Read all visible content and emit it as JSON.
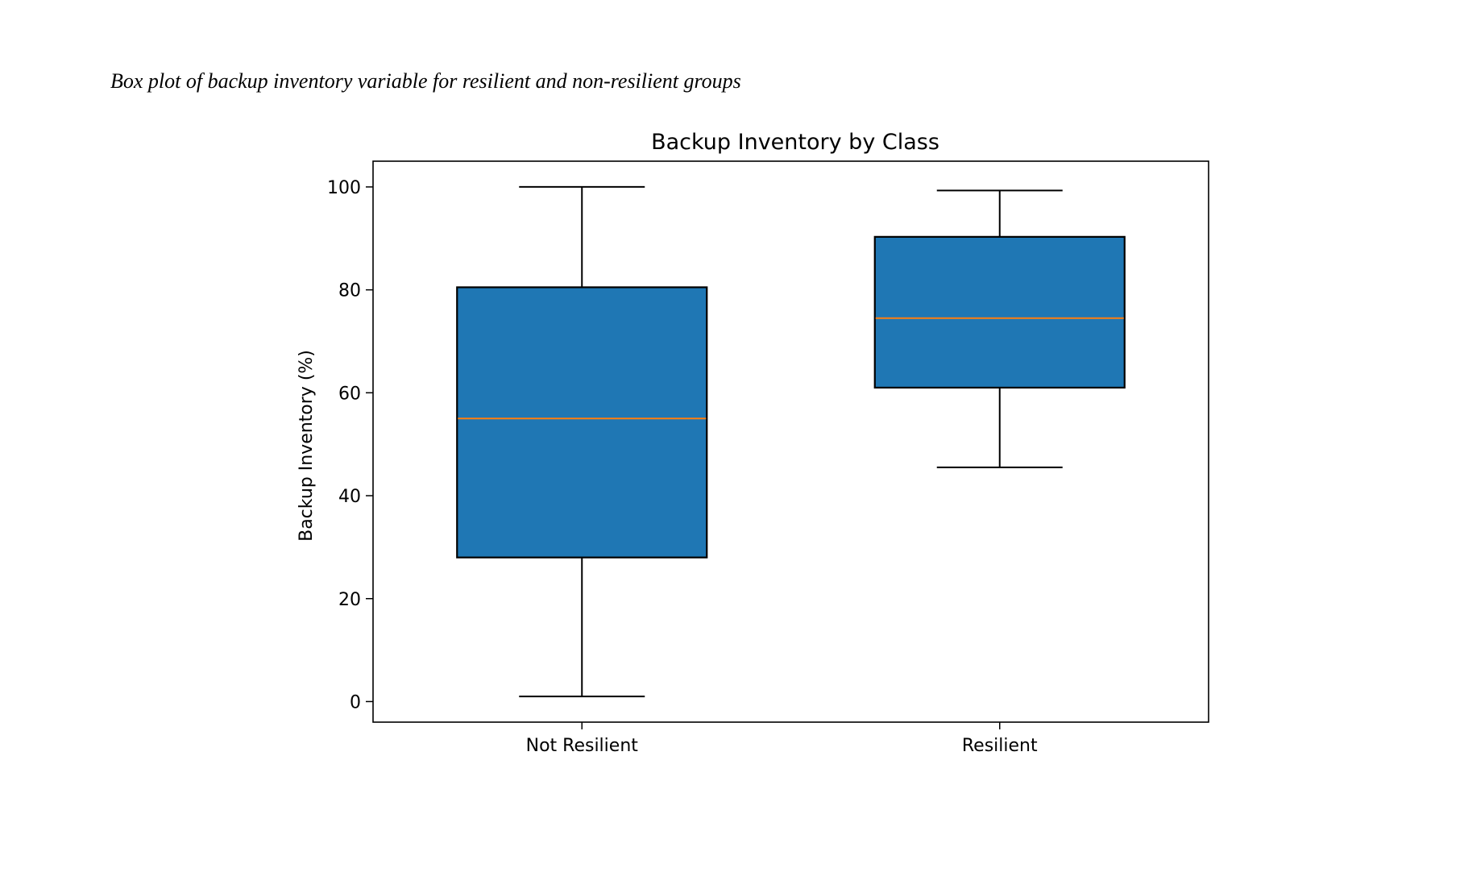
{
  "caption": "Box plot of backup inventory variable for resilient and non-resilient groups",
  "chart_data": {
    "type": "boxplot",
    "title": "Backup Inventory by Class",
    "xlabel": "",
    "ylabel": "Backup Inventory (%)",
    "ylim": [
      -4,
      105
    ],
    "yticks": [
      0,
      20,
      40,
      60,
      80,
      100
    ],
    "categories": [
      "Not Resilient",
      "Resilient"
    ],
    "boxes": [
      {
        "category": "Not Resilient",
        "whisker_low": 1,
        "q1": 28,
        "median": 55,
        "q3": 80.5,
        "whisker_high": 100
      },
      {
        "category": "Resilient",
        "whisker_low": 45.5,
        "q1": 61,
        "median": 74.5,
        "q3": 90.3,
        "whisker_high": 99.3
      }
    ],
    "grid": false,
    "colors": {
      "box_fill": "#1f77b4",
      "median_line": "#ff7f0e",
      "outline": "#000000"
    }
  }
}
